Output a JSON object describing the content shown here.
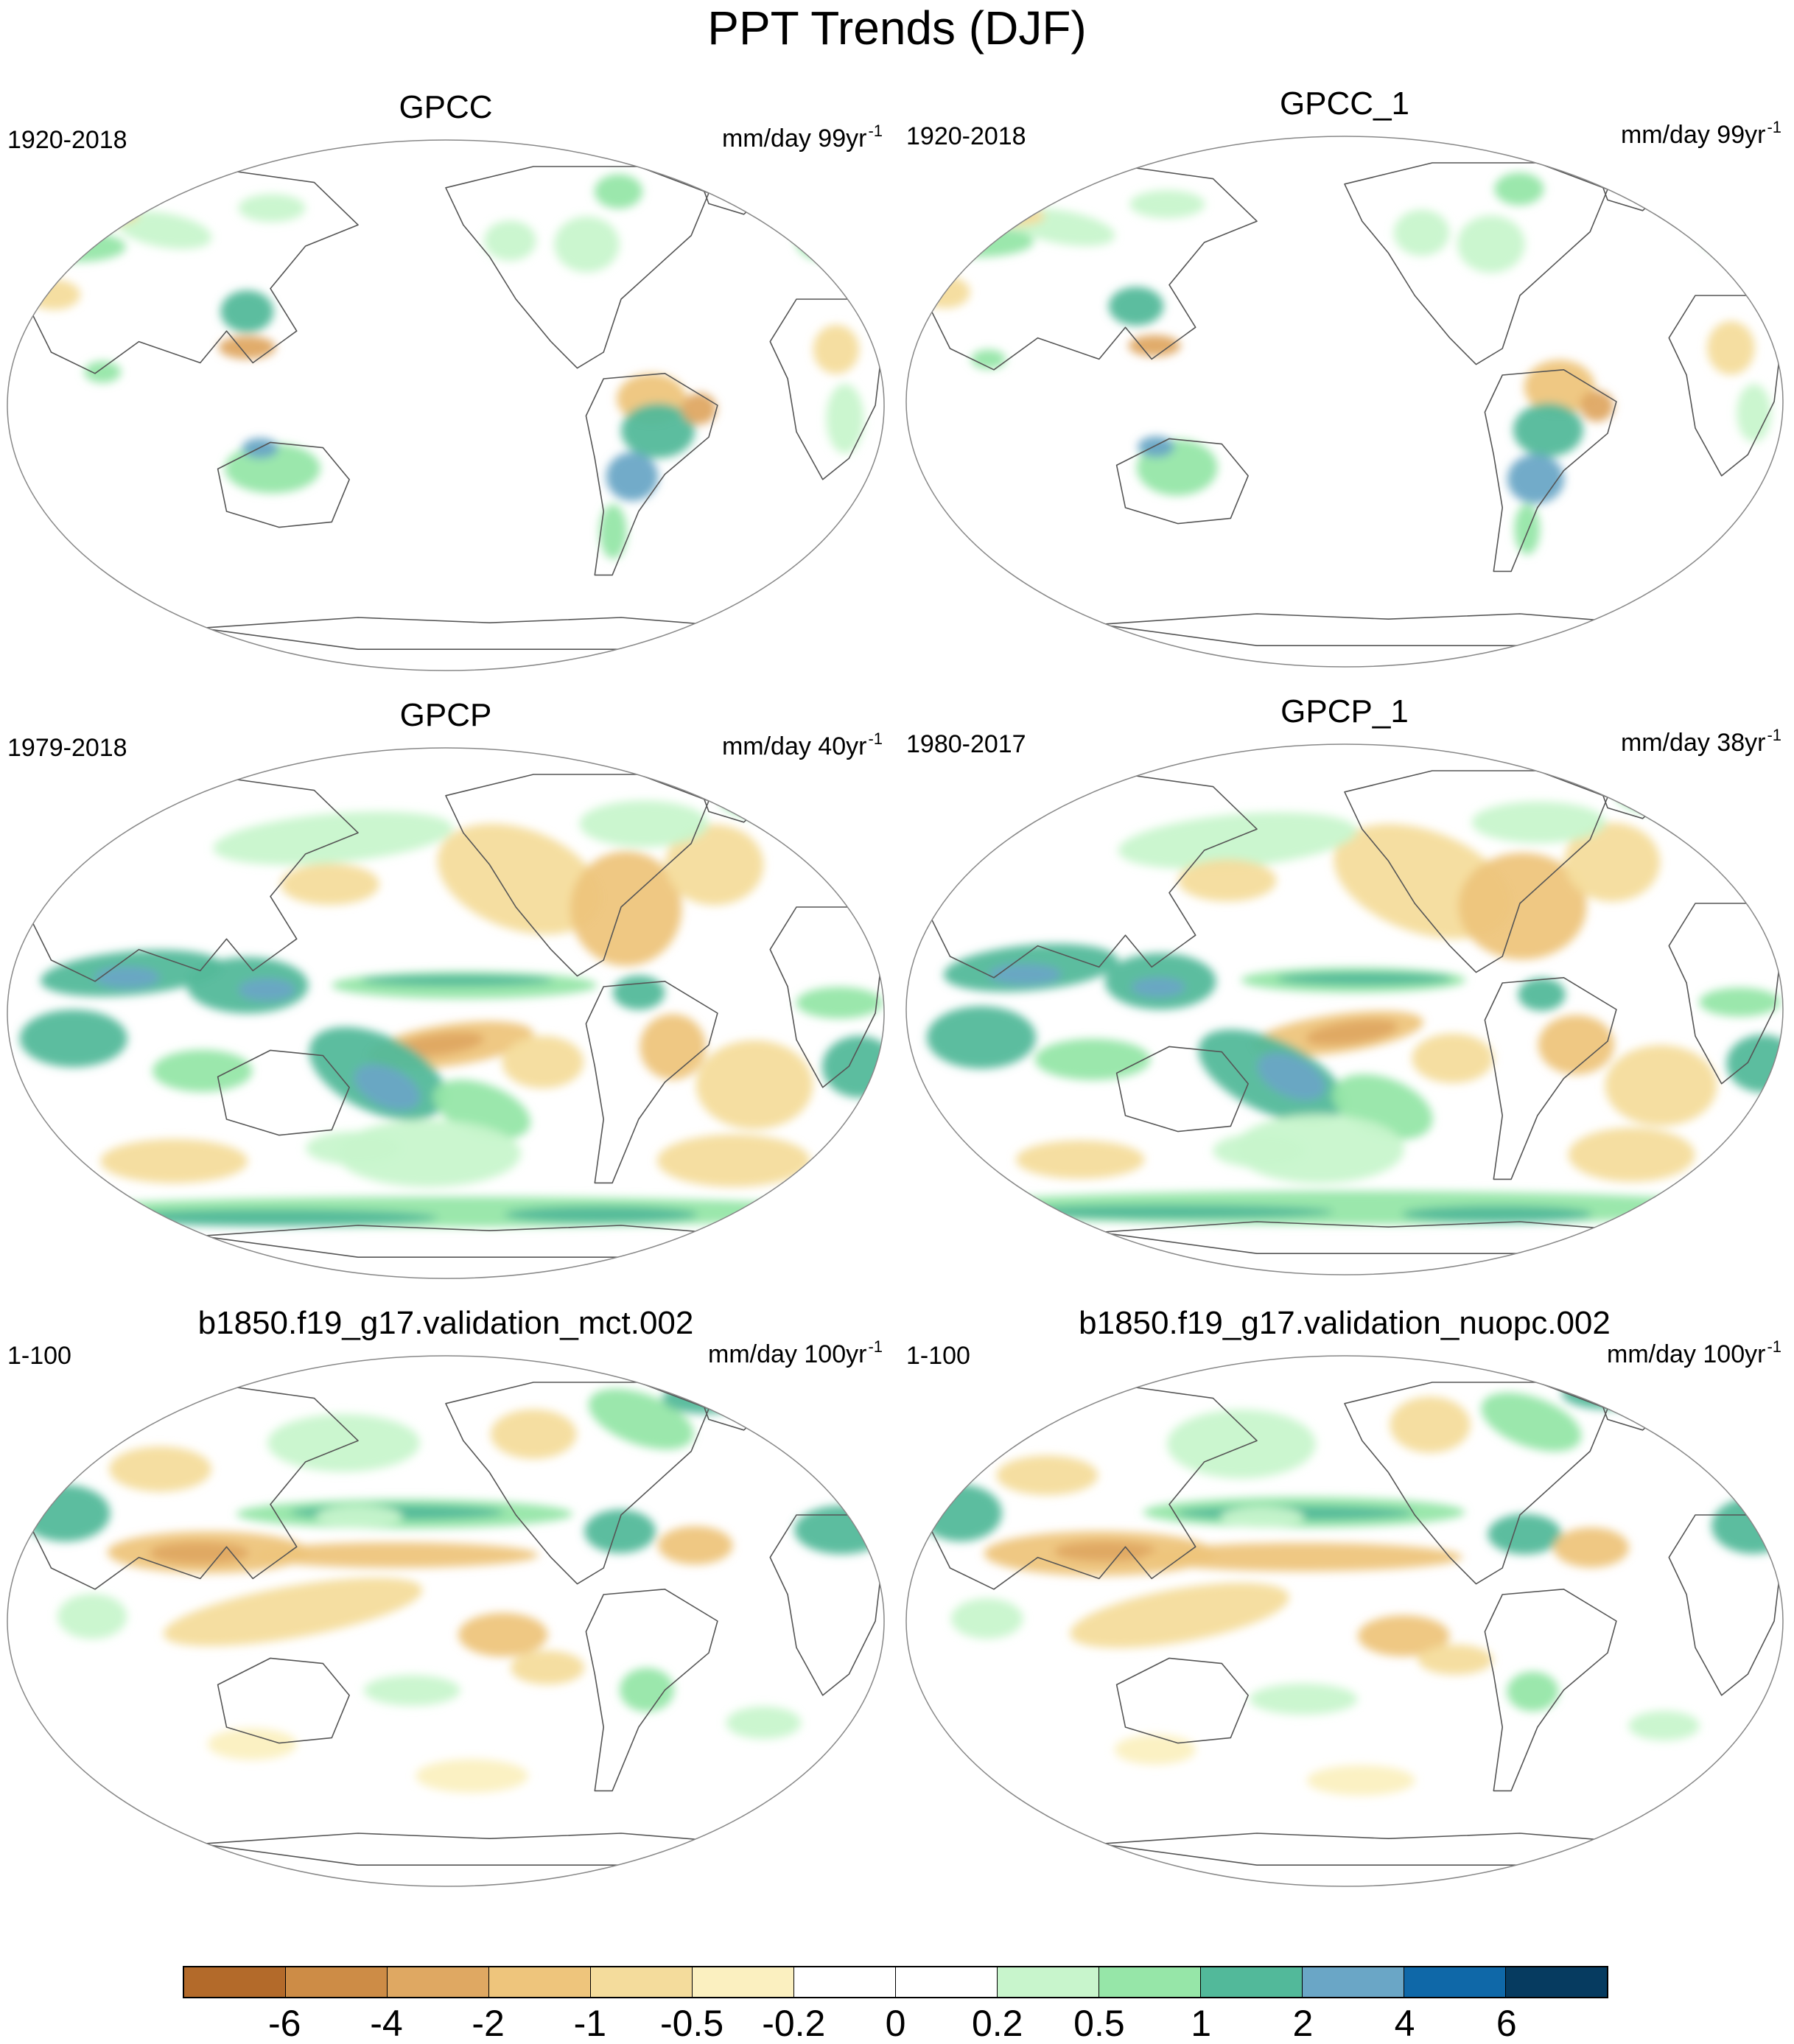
{
  "figure": {
    "title": "PPT Trends (DJF)"
  },
  "panels": [
    {
      "title": "GPCC",
      "period": "1920-2018",
      "units": "mm/day 99yr",
      "unit_exp": "-1",
      "pattern": "land"
    },
    {
      "title": "GPCC_1",
      "period": "1920-2018",
      "units": "mm/day 99yr",
      "unit_exp": "-1",
      "pattern": "land"
    },
    {
      "title": "GPCP",
      "period": "1979-2018",
      "units": "mm/day 40yr",
      "unit_exp": "-1",
      "pattern": "obs"
    },
    {
      "title": "GPCP_1",
      "period": "1980-2017",
      "units": "mm/day 38yr",
      "unit_exp": "-1",
      "pattern": "obs"
    },
    {
      "title": "b1850.f19_g17.validation_mct.002",
      "period": "1-100",
      "units": "mm/day 100yr",
      "unit_exp": "-1",
      "pattern": "model"
    },
    {
      "title": "b1850.f19_g17.validation_nuopc.002",
      "period": "1-100",
      "units": "mm/day 100yr",
      "unit_exp": "-1",
      "pattern": "model"
    }
  ],
  "colorbar": {
    "labels": [
      "-6",
      "-4",
      "-2",
      "-1",
      "-0.5",
      "-0.2",
      "0",
      "0.2",
      "0.5",
      "1",
      "2",
      "4",
      "6"
    ],
    "colors": [
      "#b36a2a",
      "#cd8c46",
      "#df a862",
      "#eec57c",
      "#f4dc9c",
      "#fbf0c0",
      "#ffffff",
      "#ffffff",
      "#c8f5cc",
      "#96e6a8",
      "#52b99a",
      "#6aa6c6",
      "#0f68a8",
      "#063b60"
    ]
  }
}
